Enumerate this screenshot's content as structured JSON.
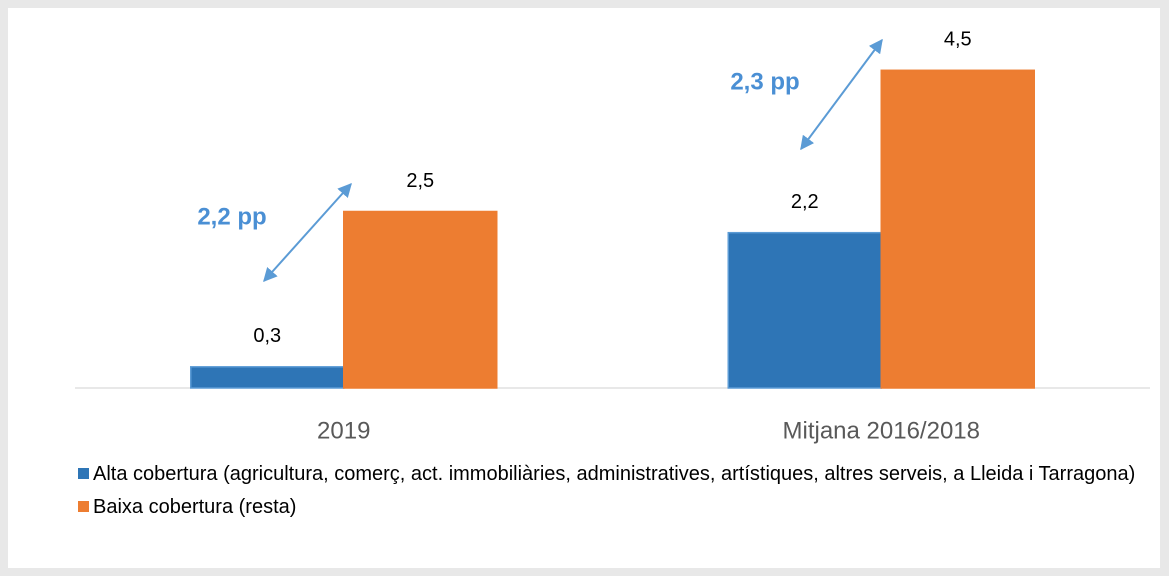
{
  "chart_data": {
    "type": "bar",
    "categories": [
      "2019",
      "Mitjana 2016/2018"
    ],
    "series": [
      {
        "name": "Alta cobertura (agricultura, comerç, act. immobiliàries, administratives, artístiques, altres serveis, a Lleida i Tarragona)",
        "color": "#2e75b6",
        "values": [
          0.3,
          2.2
        ],
        "value_labels": [
          "0,3",
          "2,2"
        ]
      },
      {
        "name": "Baixa cobertura (resta)",
        "color": "#ed7d31",
        "values": [
          2.5,
          4.5
        ],
        "value_labels": [
          "2,5",
          "4,5"
        ]
      }
    ],
    "ylim": [
      0,
      5
    ],
    "annotations": [
      "2,2 pp",
      "2,3 pp"
    ]
  }
}
